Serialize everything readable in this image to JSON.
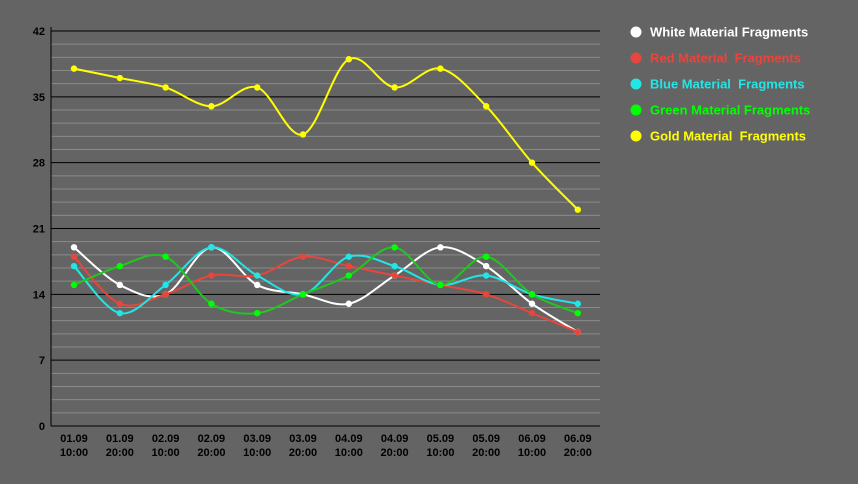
{
  "chart_data": {
    "type": "line",
    "title": "",
    "xlabel": "",
    "ylabel": "",
    "ylim": [
      0,
      42
    ],
    "yticks": [
      0,
      7,
      14,
      21,
      28,
      35,
      42
    ],
    "grid": true,
    "legend_position": "top-right",
    "categories": [
      {
        "date": "01.09",
        "time": "10:00"
      },
      {
        "date": "01.09",
        "time": "20:00"
      },
      {
        "date": "02.09",
        "time": "10:00"
      },
      {
        "date": "02.09",
        "time": "20:00"
      },
      {
        "date": "03.09",
        "time": "10:00"
      },
      {
        "date": "03.09",
        "time": "20:00"
      },
      {
        "date": "04.09",
        "time": "10:00"
      },
      {
        "date": "04.09",
        "time": "20:00"
      },
      {
        "date": "05.09",
        "time": "10:00"
      },
      {
        "date": "05.09",
        "time": "20:00"
      },
      {
        "date": "06.09",
        "time": "10:00"
      },
      {
        "date": "06.09",
        "time": "20:00"
      }
    ],
    "series": [
      {
        "name": "White Material Fragments",
        "color": "#ffffff",
        "marker_color": "#ffffff",
        "values": [
          19,
          15,
          14,
          19,
          15,
          14,
          13,
          16,
          19,
          17,
          13,
          10
        ]
      },
      {
        "name": "Red Material  Fragments",
        "color": "#e8453c",
        "marker_color": "#e8453c",
        "values": [
          18,
          13,
          14,
          16,
          16,
          18,
          17,
          16,
          15,
          14,
          12,
          10
        ]
      },
      {
        "name": "Blue Material  Fragments",
        "color": "#22e5e5",
        "marker_color": "#22e5e5",
        "values": [
          17,
          12,
          15,
          19,
          16,
          14,
          18,
          17,
          15,
          16,
          14,
          13
        ]
      },
      {
        "name": "Green Material Fragments",
        "color": "#1ec81e",
        "marker_color": "#00ff00",
        "values": [
          15,
          17,
          18,
          13,
          12,
          14,
          16,
          19,
          15,
          18,
          14,
          12
        ]
      },
      {
        "name": "Gold Material  Fragments",
        "color": "#ffff00",
        "marker_color": "#ffff00",
        "values": [
          38,
          37,
          36,
          34,
          36,
          31,
          39,
          36,
          38,
          34,
          28,
          23
        ]
      }
    ]
  }
}
